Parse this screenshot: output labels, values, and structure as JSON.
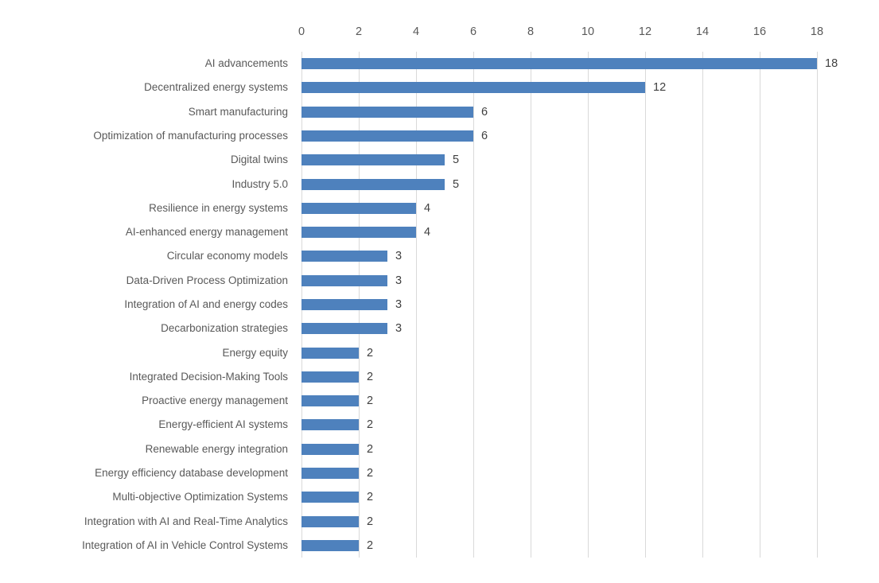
{
  "chart_data": {
    "type": "bar",
    "orientation": "horizontal",
    "title": "",
    "xlabel": "",
    "ylabel": "",
    "categories": [
      "AI advancements",
      "Decentralized energy systems",
      "Smart manufacturing",
      "Optimization of manufacturing processes",
      "Digital twins",
      "Industry 5.0",
      "Resilience in energy systems",
      "AI-enhanced energy management",
      "Circular economy models",
      "Data-Driven Process Optimization",
      "Integration of AI and energy codes",
      "Decarbonization strategies",
      "Energy equity",
      "Integrated Decision-Making Tools",
      "Proactive energy management",
      "Energy-efficient AI systems",
      "Renewable energy integration",
      "Energy efficiency database development",
      "Multi-objective Optimization Systems",
      "Integration with AI and Real-Time Analytics",
      "Integration of AI in Vehicle Control Systems"
    ],
    "values": [
      18,
      12,
      6,
      6,
      5,
      5,
      4,
      4,
      3,
      3,
      3,
      3,
      2,
      2,
      2,
      2,
      2,
      2,
      2,
      2,
      2
    ],
    "data_labels_shown": true,
    "xlim": [
      0,
      18
    ],
    "xticks": [
      0,
      2,
      4,
      6,
      8,
      10,
      12,
      14,
      16,
      18
    ],
    "x_axis_position": "top",
    "grid": "vertical",
    "legend": "none",
    "colors": {
      "bar_fill": "#4E81BD",
      "gridline": "#D9D9D9",
      "tick_label": "#595959",
      "category_label": "#595959",
      "data_label": "#404040",
      "background": "#FFFFFF"
    }
  }
}
